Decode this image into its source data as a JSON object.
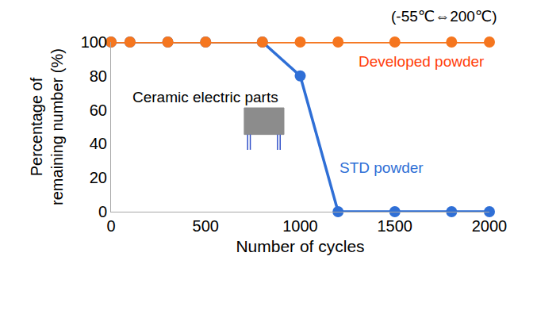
{
  "chart_data": {
    "type": "line",
    "annotations": [
      "(-55℃⇔200℃)",
      "Ceramic electric parts"
    ],
    "x": [
      0,
      100,
      300,
      500,
      800,
      1000,
      1200,
      1500,
      1800,
      2000
    ],
    "series": [
      {
        "name": "STD powder",
        "color": "#2f6fd6",
        "values": [
          100,
          100,
          100,
          100,
          100,
          80,
          0,
          0,
          0,
          0
        ]
      },
      {
        "name": "Developed powder",
        "color": "#f5761f",
        "values": [
          100,
          100,
          100,
          100,
          100,
          100,
          100,
          100,
          100,
          100
        ]
      }
    ],
    "x_label": "Number of cycles",
    "y_label": "Percentage of\nremaining number (%)",
    "xlim": [
      0,
      2000
    ],
    "ylim": [
      0,
      100
    ],
    "xticks": [
      0,
      500,
      1000,
      1500,
      2000
    ],
    "yticks": [
      0,
      20,
      40,
      60,
      80,
      100
    ],
    "grid": false,
    "marker": "circle",
    "line_style": "solid"
  }
}
